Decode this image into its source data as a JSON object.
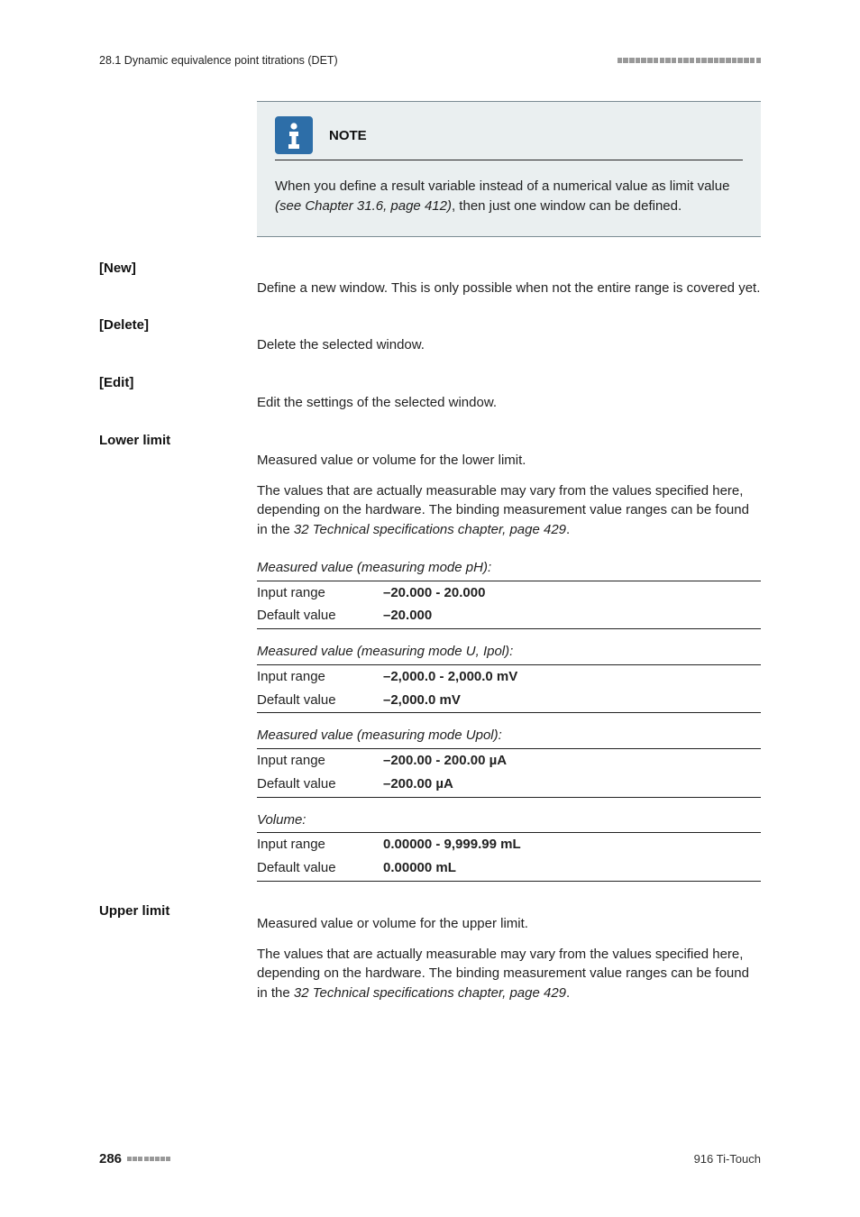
{
  "header": {
    "section_label": "28.1 Dynamic equivalence point titrations (DET)",
    "dash_count_right": 24,
    "dash_count_footer": 8
  },
  "note": {
    "title": "NOTE",
    "body_pre": "When you define a result variable instead of a numerical value as limit value ",
    "body_ref": "(see Chapter 31.6, page 412)",
    "body_post": ", then just one window can be defined."
  },
  "actions": {
    "new": {
      "label": "[New]",
      "desc": "Define a new window. This is only possible when not the entire range is covered yet."
    },
    "delete": {
      "label": "[Delete]",
      "desc": "Delete the selected window."
    },
    "edit": {
      "label": "[Edit]",
      "desc": "Edit the settings of the selected window."
    }
  },
  "lower_limit": {
    "label": "Lower limit",
    "desc1": "Measured value or volume for the lower limit.",
    "desc2_pre": "The values that are actually measurable may vary from the values specified here, depending on the hardware. The binding measurement value ranges can be found in the ",
    "desc2_ref": "32 Technical specifications chapter, page 429",
    "desc2_post": ".",
    "tables": [
      {
        "heading": "Measured value (measuring mode pH):",
        "rows": [
          {
            "k": "Input range",
            "v": "–20.000 - 20.000"
          },
          {
            "k": "Default value",
            "v": "–20.000"
          }
        ]
      },
      {
        "heading": "Measured value (measuring mode U, Ipol):",
        "rows": [
          {
            "k": "Input range",
            "v": "–2,000.0 - 2,000.0 mV"
          },
          {
            "k": "Default value",
            "v": "–2,000.0 mV"
          }
        ]
      },
      {
        "heading": "Measured value (measuring mode Upol):",
        "rows": [
          {
            "k": "Input range",
            "v": "–200.00 - 200.00 µA"
          },
          {
            "k": "Default value",
            "v": "–200.00 µA"
          }
        ]
      },
      {
        "heading": "Volume:",
        "rows": [
          {
            "k": "Input range",
            "v": "0.00000 - 9,999.99 mL"
          },
          {
            "k": "Default value",
            "v": "0.00000 mL"
          }
        ]
      }
    ]
  },
  "upper_limit": {
    "label": "Upper limit",
    "desc1": "Measured value or volume for the upper limit.",
    "desc2_pre": "The values that are actually measurable may vary from the values specified here, depending on the hardware. The binding measurement value ranges can be found in the ",
    "desc2_ref": "32 Technical specifications chapter, page 429",
    "desc2_post": "."
  },
  "footer": {
    "page_number": "286",
    "device": "916 Ti-Touch"
  },
  "colors": {
    "note_bg": "#eaeff0",
    "note_border": "#7b8b93",
    "icon_bg": "#2d6ea8",
    "icon_fg": "#ffffff",
    "dash": "#999999"
  }
}
